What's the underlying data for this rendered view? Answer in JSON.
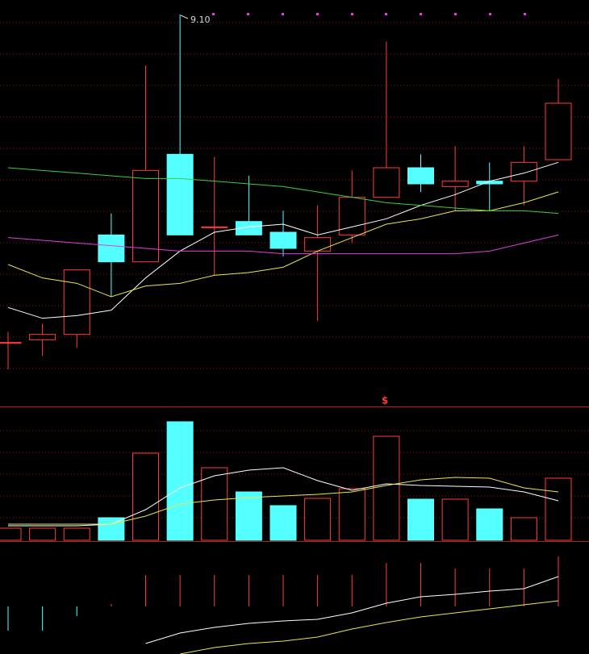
{
  "chart_data": [
    {
      "type": "candlestick",
      "annotation": "9.10",
      "ylim": [
        7.744,
        9.154
      ],
      "up_color": "#ff3c3c",
      "down_color": "#54ffff",
      "open": [
        7.88,
        7.89,
        7.91,
        8.28,
        8.18,
        8.58,
        8.31,
        8.33,
        8.29,
        8.22,
        8.28,
        8.42,
        8.53,
        8.46,
        8.48,
        8.48,
        8.56
      ],
      "high": [
        7.92,
        7.95,
        8.15,
        8.36,
        8.91,
        9.1,
        8.57,
        8.5,
        8.37,
        8.39,
        8.52,
        9.0,
        8.58,
        8.61,
        8.55,
        8.61,
        8.86
      ],
      "low": [
        7.78,
        7.83,
        7.86,
        8.05,
        8.18,
        8.28,
        8.13,
        8.28,
        8.2,
        7.96,
        8.25,
        8.42,
        8.44,
        8.37,
        8.37,
        8.39,
        8.56
      ],
      "close": [
        7.88,
        7.91,
        8.15,
        8.18,
        8.52,
        8.28,
        8.31,
        8.28,
        8.23,
        8.27,
        8.42,
        8.53,
        8.47,
        8.48,
        8.47,
        8.55,
        8.77
      ],
      "lines": [
        {
          "color": "#ffffff",
          "values": [
            8.01,
            7.97,
            7.98,
            8.0,
            8.12,
            8.22,
            8.29,
            8.31,
            8.32,
            8.28,
            8.31,
            8.34,
            8.39,
            8.43,
            8.48,
            8.51,
            8.55
          ]
        },
        {
          "color": "#e8e84a",
          "values": [
            8.17,
            8.12,
            8.1,
            8.05,
            8.09,
            8.1,
            8.13,
            8.14,
            8.16,
            8.22,
            8.27,
            8.32,
            8.34,
            8.37,
            8.37,
            8.4,
            8.44
          ]
        },
        {
          "color": "#3ccf3c",
          "values": [
            8.53,
            8.52,
            8.51,
            8.5,
            8.49,
            8.49,
            8.48,
            8.47,
            8.46,
            8.44,
            8.42,
            8.4,
            8.39,
            8.38,
            8.37,
            8.37,
            8.36
          ]
        },
        {
          "color": "#e040e0",
          "values": [
            8.27,
            8.26,
            8.25,
            8.24,
            8.23,
            8.22,
            8.22,
            8.22,
            8.21,
            8.21,
            8.21,
            8.21,
            8.21,
            8.21,
            8.22,
            8.25,
            8.28
          ]
        }
      ]
    },
    {
      "type": "volume",
      "annotation": "$",
      "ylim": [
        0,
        165
      ],
      "values": [
        15,
        15,
        15,
        28,
        108,
        147,
        90,
        60,
        43,
        52,
        64,
        129,
        51,
        51,
        39,
        28,
        77
      ],
      "lines": [
        {
          "color": "#ffffff",
          "values": [
            18,
            18,
            18,
            20,
            38,
            65,
            80,
            87,
            90,
            74,
            62,
            70,
            68,
            67,
            66,
            60,
            49
          ]
        },
        {
          "color": "#e8e84a",
          "values": [
            20,
            20,
            20,
            20,
            30,
            45,
            50,
            53,
            55,
            57,
            60,
            68,
            75,
            78,
            77,
            65,
            60
          ]
        }
      ]
    },
    {
      "type": "macd",
      "ylim": [
        -59,
        80
      ],
      "values": [
        -30,
        -30,
        -12,
        3,
        39,
        39,
        39,
        39,
        39,
        39,
        39,
        54,
        54,
        47,
        47,
        47,
        62
      ],
      "lines": [
        {
          "color": "#ffffff",
          "values": [
            null,
            null,
            null,
            null,
            -46,
            -33,
            -26,
            -21,
            -18,
            -16,
            -8,
            4,
            12,
            15,
            19,
            22,
            37
          ]
        },
        {
          "color": "#e8e84a",
          "values": [
            null,
            null,
            null,
            null,
            null,
            -59,
            -51,
            -46,
            -43,
            -38,
            -28,
            -20,
            -13,
            -8,
            -3,
            2,
            7
          ]
        }
      ]
    }
  ]
}
